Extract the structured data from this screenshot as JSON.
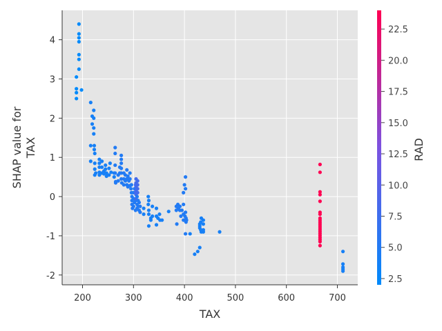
{
  "chart_data": {
    "type": "scatter",
    "title": "",
    "xlabel": "TAX",
    "ylabel_lines": [
      "SHAP value for",
      "TAX"
    ],
    "xlim": [
      160,
      740
    ],
    "ylim": [
      -2.25,
      4.75
    ],
    "xticks": [
      200,
      300,
      400,
      500,
      600,
      700
    ],
    "yticks": [
      -2,
      -1,
      0,
      1,
      2,
      3,
      4
    ],
    "grid": true,
    "colorbar": {
      "label": "RAD",
      "range": [
        2,
        24
      ],
      "ticks": [
        2.5,
        5.0,
        7.5,
        10.0,
        12.5,
        15.0,
        17.5,
        20.0,
        22.5
      ],
      "tick_labels": [
        "2.5",
        "5.0",
        "7.5",
        "10.0",
        "12.5",
        "15.0",
        "17.5",
        "20.0",
        "22.5"
      ],
      "colors": [
        "#008afb",
        "#7c52e0",
        "#ff0052"
      ]
    },
    "series": [
      {
        "points": [
          {
            "x": 188,
            "y": 3.05,
            "c": 2
          },
          {
            "x": 188,
            "y": 2.75,
            "c": 2
          },
          {
            "x": 188,
            "y": 2.65,
            "c": 2
          },
          {
            "x": 188,
            "y": 2.5,
            "c": 2
          },
          {
            "x": 193,
            "y": 4.4,
            "c": 2
          },
          {
            "x": 193,
            "y": 4.15,
            "c": 2
          },
          {
            "x": 193,
            "y": 4.05,
            "c": 2
          },
          {
            "x": 193,
            "y": 3.95,
            "c": 2
          },
          {
            "x": 193,
            "y": 3.62,
            "c": 2
          },
          {
            "x": 193,
            "y": 3.5,
            "c": 2
          },
          {
            "x": 193,
            "y": 3.25,
            "c": 2
          },
          {
            "x": 198,
            "y": 2.72,
            "c": 2
          },
          {
            "x": 216,
            "y": 2.4,
            "c": 4
          },
          {
            "x": 216,
            "y": 1.3,
            "c": 4
          },
          {
            "x": 216,
            "y": 0.9,
            "c": 4
          },
          {
            "x": 219,
            "y": 2.05,
            "c": 4
          },
          {
            "x": 219,
            "y": 1.85,
            "c": 4
          },
          {
            "x": 222,
            "y": 2.2,
            "c": 4
          },
          {
            "x": 222,
            "y": 2.0,
            "c": 4
          },
          {
            "x": 222,
            "y": 1.75,
            "c": 4
          },
          {
            "x": 222,
            "y": 1.6,
            "c": 4
          },
          {
            "x": 223,
            "y": 1.3,
            "c": 4
          },
          {
            "x": 223,
            "y": 1.2,
            "c": 4
          },
          {
            "x": 224,
            "y": 1.1,
            "c": 4
          },
          {
            "x": 224,
            "y": 0.85,
            "c": 4
          },
          {
            "x": 224,
            "y": 0.7,
            "c": 4
          },
          {
            "x": 224,
            "y": 0.55,
            "c": 4
          },
          {
            "x": 226,
            "y": 0.6,
            "c": 4
          },
          {
            "x": 233,
            "y": 0.95,
            "c": 4
          },
          {
            "x": 233,
            "y": 0.85,
            "c": 4
          },
          {
            "x": 233,
            "y": 0.75,
            "c": 4
          },
          {
            "x": 233,
            "y": 0.62,
            "c": 4
          },
          {
            "x": 233,
            "y": 0.55,
            "c": 4
          },
          {
            "x": 238,
            "y": 0.9,
            "c": 4
          },
          {
            "x": 238,
            "y": 0.75,
            "c": 4
          },
          {
            "x": 238,
            "y": 0.6,
            "c": 4
          },
          {
            "x": 242,
            "y": 0.65,
            "c": 4
          },
          {
            "x": 242,
            "y": 0.58,
            "c": 4
          },
          {
            "x": 245,
            "y": 0.8,
            "c": 4
          },
          {
            "x": 245,
            "y": 0.7,
            "c": 4
          },
          {
            "x": 247,
            "y": 0.6,
            "c": 4
          },
          {
            "x": 247,
            "y": 0.52,
            "c": 4
          },
          {
            "x": 252,
            "y": 0.72,
            "c": 4
          },
          {
            "x": 252,
            "y": 0.55,
            "c": 4
          },
          {
            "x": 254,
            "y": 0.85,
            "c": 4
          },
          {
            "x": 256,
            "y": 0.62,
            "c": 4
          },
          {
            "x": 262,
            "y": 0.6,
            "c": 4
          },
          {
            "x": 262,
            "y": 0.5,
            "c": 4
          },
          {
            "x": 264,
            "y": 1.25,
            "c": 5
          },
          {
            "x": 264,
            "y": 1.1,
            "c": 5
          },
          {
            "x": 264,
            "y": 0.8,
            "c": 5
          },
          {
            "x": 264,
            "y": 0.6,
            "c": 5
          },
          {
            "x": 265,
            "y": 0.38,
            "c": 5
          },
          {
            "x": 265,
            "y": 0.35,
            "c": 5
          },
          {
            "x": 270,
            "y": 0.55,
            "c": 5
          },
          {
            "x": 270,
            "y": 0.4,
            "c": 5
          },
          {
            "x": 273,
            "y": 0.75,
            "c": 5
          },
          {
            "x": 273,
            "y": 0.6,
            "c": 5
          },
          {
            "x": 276,
            "y": 1.05,
            "c": 5
          },
          {
            "x": 276,
            "y": 0.95,
            "c": 5
          },
          {
            "x": 276,
            "y": 0.85,
            "c": 5
          },
          {
            "x": 276,
            "y": 0.72,
            "c": 5
          },
          {
            "x": 276,
            "y": 0.6,
            "c": 5
          },
          {
            "x": 276,
            "y": 0.45,
            "c": 5
          },
          {
            "x": 277,
            "y": 0.35,
            "c": 5
          },
          {
            "x": 281,
            "y": 0.6,
            "c": 5
          },
          {
            "x": 281,
            "y": 0.45,
            "c": 5
          },
          {
            "x": 281,
            "y": 0.3,
            "c": 5
          },
          {
            "x": 284,
            "y": 0.55,
            "c": 5
          },
          {
            "x": 284,
            "y": 0.4,
            "c": 5
          },
          {
            "x": 287,
            "y": 0.68,
            "c": 5
          },
          {
            "x": 287,
            "y": 0.45,
            "c": 5
          },
          {
            "x": 287,
            "y": 0.3,
            "c": 5
          },
          {
            "x": 289,
            "y": 0.52,
            "c": 5
          },
          {
            "x": 289,
            "y": 0.25,
            "c": 5
          },
          {
            "x": 291,
            "y": 0.4,
            "c": 5
          },
          {
            "x": 293,
            "y": 0.6,
            "c": 5
          },
          {
            "x": 293,
            "y": 0.45,
            "c": 5
          },
          {
            "x": 293,
            "y": 0.28,
            "c": 5
          },
          {
            "x": 295,
            "y": 0.2,
            "c": 5
          },
          {
            "x": 296,
            "y": 0.3,
            "c": 5
          },
          {
            "x": 296,
            "y": 0.1,
            "c": 5
          },
          {
            "x": 297,
            "y": 0.0,
            "c": 5
          },
          {
            "x": 297,
            "y": -0.1,
            "c": 5
          },
          {
            "x": 297,
            "y": -0.2,
            "c": 5
          },
          {
            "x": 298,
            "y": -0.3,
            "c": 5
          },
          {
            "x": 300,
            "y": 0.1,
            "c": 5
          },
          {
            "x": 300,
            "y": -0.05,
            "c": 5
          },
          {
            "x": 300,
            "y": -0.25,
            "c": 5
          },
          {
            "x": 302,
            "y": 0.2,
            "c": 5
          },
          {
            "x": 302,
            "y": -0.15,
            "c": 5
          },
          {
            "x": 304,
            "y": 0.3,
            "c": 8
          },
          {
            "x": 304,
            "y": 0.1,
            "c": 8
          },
          {
            "x": 304,
            "y": -0.1,
            "c": 5
          },
          {
            "x": 304,
            "y": -0.35,
            "c": 5
          },
          {
            "x": 305,
            "y": 0.45,
            "c": 8
          },
          {
            "x": 305,
            "y": 0.35,
            "c": 8
          },
          {
            "x": 305,
            "y": 0.25,
            "c": 8
          },
          {
            "x": 305,
            "y": 0.15,
            "c": 8
          },
          {
            "x": 305,
            "y": 0.05,
            "c": 8
          },
          {
            "x": 305,
            "y": -0.05,
            "c": 8
          },
          {
            "x": 307,
            "y": 0.2,
            "c": 8
          },
          {
            "x": 307,
            "y": 0.0,
            "c": 5
          },
          {
            "x": 307,
            "y": -0.2,
            "c": 5
          },
          {
            "x": 307,
            "y": -0.3,
            "c": 5
          },
          {
            "x": 308,
            "y": 0.4,
            "c": 8
          },
          {
            "x": 308,
            "y": 0.3,
            "c": 8
          },
          {
            "x": 308,
            "y": 0.2,
            "c": 8
          },
          {
            "x": 308,
            "y": 0.1,
            "c": 8
          },
          {
            "x": 309,
            "y": -0.1,
            "c": 5
          },
          {
            "x": 309,
            "y": -0.25,
            "c": 5
          },
          {
            "x": 311,
            "y": -0.35,
            "c": 5
          },
          {
            "x": 311,
            "y": -0.15,
            "c": 5
          },
          {
            "x": 313,
            "y": -0.4,
            "c": 5
          },
          {
            "x": 313,
            "y": -0.25,
            "c": 5
          },
          {
            "x": 320,
            "y": -0.3,
            "c": 4
          },
          {
            "x": 320,
            "y": -0.45,
            "c": 4
          },
          {
            "x": 329,
            "y": 0.0,
            "c": 4
          },
          {
            "x": 329,
            "y": -0.2,
            "c": 4
          },
          {
            "x": 330,
            "y": -0.1,
            "c": 4
          },
          {
            "x": 330,
            "y": -0.35,
            "c": 4
          },
          {
            "x": 330,
            "y": -0.45,
            "c": 4
          },
          {
            "x": 330,
            "y": -0.75,
            "c": 4
          },
          {
            "x": 334,
            "y": -0.55,
            "c": 4
          },
          {
            "x": 334,
            "y": -0.6,
            "c": 4
          },
          {
            "x": 337,
            "y": -0.25,
            "c": 4
          },
          {
            "x": 337,
            "y": -0.5,
            "c": 4
          },
          {
            "x": 345,
            "y": -0.3,
            "c": 4
          },
          {
            "x": 345,
            "y": -0.5,
            "c": 4
          },
          {
            "x": 345,
            "y": -0.72,
            "c": 4
          },
          {
            "x": 348,
            "y": -0.55,
            "c": 4
          },
          {
            "x": 351,
            "y": -0.45,
            "c": 4
          },
          {
            "x": 352,
            "y": -0.6,
            "c": 4
          },
          {
            "x": 356,
            "y": -0.6,
            "c": 4
          },
          {
            "x": 369,
            "y": -0.38,
            "c": 4
          },
          {
            "x": 384,
            "y": -0.25,
            "c": 5
          },
          {
            "x": 384,
            "y": -0.35,
            "c": 5
          },
          {
            "x": 385,
            "y": -0.7,
            "c": 5
          },
          {
            "x": 387,
            "y": -0.2,
            "c": 5
          },
          {
            "x": 388,
            "y": -0.3,
            "c": 5
          },
          {
            "x": 391,
            "y": -0.35,
            "c": 5
          },
          {
            "x": 391,
            "y": -0.25,
            "c": 5
          },
          {
            "x": 393,
            "y": -0.5,
            "c": 5
          },
          {
            "x": 395,
            "y": -0.35,
            "c": 5
          },
          {
            "x": 398,
            "y": -0.6,
            "c": 5
          },
          {
            "x": 398,
            "y": -0.45,
            "c": 5
          },
          {
            "x": 398,
            "y": 0.1,
            "c": 5
          },
          {
            "x": 398,
            "y": -0.2,
            "c": 5
          },
          {
            "x": 400,
            "y": 0.3,
            "c": 5
          },
          {
            "x": 401,
            "y": -0.5,
            "c": 5
          },
          {
            "x": 402,
            "y": 0.5,
            "c": 5
          },
          {
            "x": 402,
            "y": 0.2,
            "c": 5
          },
          {
            "x": 402,
            "y": -0.4,
            "c": 5
          },
          {
            "x": 402,
            "y": -0.95,
            "c": 5
          },
          {
            "x": 403,
            "y": -0.55,
            "c": 5
          },
          {
            "x": 403,
            "y": -0.65,
            "c": 5
          },
          {
            "x": 404,
            "y": -0.6,
            "c": 5
          },
          {
            "x": 411,
            "y": -0.95,
            "c": 4
          },
          {
            "x": 420,
            "y": -1.47,
            "c": 4
          },
          {
            "x": 426,
            "y": -1.4,
            "c": 4
          },
          {
            "x": 430,
            "y": -0.7,
            "c": 4
          },
          {
            "x": 430,
            "y": -0.75,
            "c": 4
          },
          {
            "x": 430,
            "y": -0.8,
            "c": 4
          },
          {
            "x": 430,
            "y": -1.3,
            "c": 4
          },
          {
            "x": 432,
            "y": -0.65,
            "c": 4
          },
          {
            "x": 432,
            "y": -0.85,
            "c": 4
          },
          {
            "x": 433,
            "y": -0.9,
            "c": 4
          },
          {
            "x": 433,
            "y": -0.55,
            "c": 4
          },
          {
            "x": 437,
            "y": -0.6,
            "c": 4
          },
          {
            "x": 437,
            "y": -0.7,
            "c": 4
          },
          {
            "x": 437,
            "y": -0.85,
            "c": 4
          },
          {
            "x": 437,
            "y": -0.9,
            "c": 4
          },
          {
            "x": 469,
            "y": -0.9,
            "c": 4
          },
          {
            "x": 666,
            "y": 0.82,
            "c": 24
          },
          {
            "x": 666,
            "y": 0.62,
            "c": 24
          },
          {
            "x": 666,
            "y": 0.12,
            "c": 24
          },
          {
            "x": 666,
            "y": 0.05,
            "c": 24
          },
          {
            "x": 666,
            "y": -0.12,
            "c": 24
          },
          {
            "x": 666,
            "y": -0.4,
            "c": 24
          },
          {
            "x": 666,
            "y": -0.45,
            "c": 24
          },
          {
            "x": 666,
            "y": -0.55,
            "c": 24
          },
          {
            "x": 666,
            "y": -0.6,
            "c": 24
          },
          {
            "x": 666,
            "y": -0.65,
            "c": 24
          },
          {
            "x": 666,
            "y": -0.7,
            "c": 24
          },
          {
            "x": 666,
            "y": -0.75,
            "c": 24
          },
          {
            "x": 666,
            "y": -0.8,
            "c": 24
          },
          {
            "x": 666,
            "y": -0.85,
            "c": 24
          },
          {
            "x": 666,
            "y": -0.9,
            "c": 24
          },
          {
            "x": 666,
            "y": -0.95,
            "c": 24
          },
          {
            "x": 666,
            "y": -1.0,
            "c": 24
          },
          {
            "x": 666,
            "y": -1.05,
            "c": 24
          },
          {
            "x": 666,
            "y": -1.1,
            "c": 24
          },
          {
            "x": 666,
            "y": -1.15,
            "c": 24
          },
          {
            "x": 666,
            "y": -1.25,
            "c": 24
          },
          {
            "x": 711,
            "y": -1.4,
            "c": 4
          },
          {
            "x": 711,
            "y": -1.72,
            "c": 4
          },
          {
            "x": 711,
            "y": -1.8,
            "c": 4
          },
          {
            "x": 711,
            "y": -1.85,
            "c": 4
          },
          {
            "x": 711,
            "y": -1.9,
            "c": 4
          }
        ]
      }
    ]
  }
}
